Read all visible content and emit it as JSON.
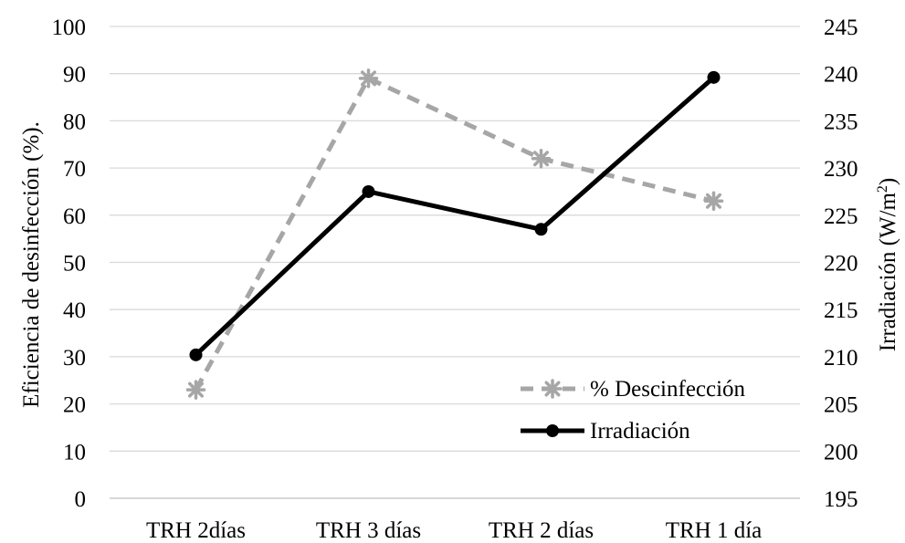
{
  "chart_data": {
    "type": "line",
    "categories": [
      "TRH 2días",
      "TRH 3 días",
      "TRH 2 días",
      "TRH 1 día"
    ],
    "ylabel_left": "Eficiencia de desinfección (%).",
    "ylabel_right": "Irradiación (W/m²)",
    "ylim_left": [
      0,
      100
    ],
    "yticks_left": [
      0,
      10,
      20,
      30,
      40,
      50,
      60,
      70,
      80,
      90,
      100
    ],
    "ylim_right": [
      195,
      245
    ],
    "yticks_right": [
      195,
      200,
      205,
      210,
      215,
      220,
      225,
      230,
      235,
      240,
      245
    ],
    "grid": "horizontal",
    "legend_position": "bottom-right",
    "series": [
      {
        "name": "% Descinfección",
        "axis": "left",
        "values": [
          23,
          89,
          72,
          63
        ],
        "color": "#a6a6a6",
        "line_style": "dashed",
        "marker": "asterisk"
      },
      {
        "name": "Irradiación",
        "axis": "right",
        "values": [
          210.2,
          227.5,
          223.5,
          239.6
        ],
        "color": "#000000",
        "line_style": "solid",
        "marker": "circle"
      }
    ]
  }
}
